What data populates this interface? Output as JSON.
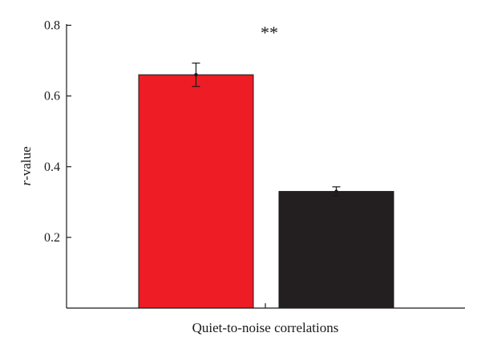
{
  "chart_data": {
    "type": "bar",
    "title": "",
    "xlabel": "Quiet-to-noise correlations",
    "ylabel_italic": "r",
    "ylabel_rest": "-value",
    "ylim": [
      0,
      0.8
    ],
    "yticks": [
      0.2,
      0.4,
      0.6,
      0.8
    ],
    "ytick_labels": [
      "0.2",
      "0.4",
      "0.6",
      "0.8"
    ],
    "grid": false,
    "bars": [
      {
        "value": 0.66,
        "error": 0.033,
        "color": "#ee1c25"
      },
      {
        "value": 0.33,
        "error": 0.013,
        "color": "#231f20"
      }
    ],
    "annotation": "**"
  }
}
